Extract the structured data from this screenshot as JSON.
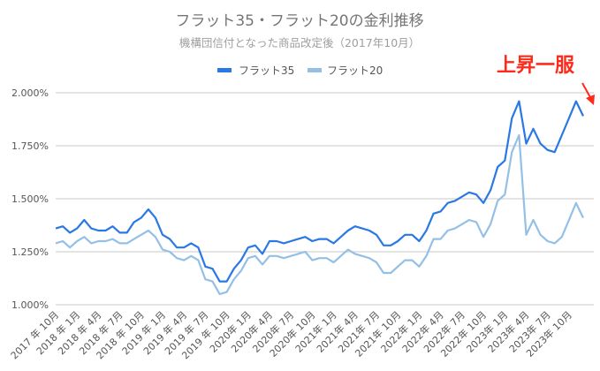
{
  "chart_data": {
    "type": "line",
    "title": "フラット35・フラット20の金利推移",
    "subtitle": "機構団信付となった商品改定後（2017年10月）",
    "annotation": "上昇一服",
    "annotation_color": "#ff2a1a",
    "ylim": [
      1.0,
      2.0
    ],
    "yticks": [
      "1.000%",
      "1.250%",
      "1.500%",
      "1.750%",
      "2.000%"
    ],
    "ytick_values": [
      1.0,
      1.25,
      1.5,
      1.75,
      2.0
    ],
    "grid": true,
    "legend_position": "top",
    "x_start": "2017-10",
    "xtick_labels": [
      "2017 年 10月",
      "2018 年 1月",
      "2018 年 4月",
      "2018 年 7月",
      "2018 年 10月",
      "2019 年 1月",
      "2019 年 4月",
      "2019 年 7月",
      "2019 年 10月",
      "2020年 1月",
      "2020年 4月",
      "2020年 7月",
      "2020年 10月",
      "2021年 1月",
      "2021年 4月",
      "2021年 7月",
      "2021年 10月",
      "2022年 1月",
      "2022年 4月",
      "2022年 7月",
      "2022年 10月",
      "2023年 1月",
      "2023年 4月",
      "2023年 7月",
      "2023年 10月"
    ],
    "series": [
      {
        "name": "フラット35",
        "color": "#2a78e4",
        "values": [
          1.36,
          1.37,
          1.34,
          1.36,
          1.4,
          1.36,
          1.35,
          1.35,
          1.37,
          1.34,
          1.34,
          1.39,
          1.41,
          1.45,
          1.41,
          1.33,
          1.31,
          1.27,
          1.27,
          1.29,
          1.27,
          1.18,
          1.17,
          1.11,
          1.11,
          1.17,
          1.21,
          1.27,
          1.28,
          1.24,
          1.3,
          1.3,
          1.29,
          1.3,
          1.31,
          1.32,
          1.3,
          1.31,
          1.31,
          1.29,
          1.32,
          1.35,
          1.37,
          1.36,
          1.35,
          1.33,
          1.28,
          1.28,
          1.3,
          1.33,
          1.33,
          1.3,
          1.35,
          1.43,
          1.44,
          1.48,
          1.49,
          1.51,
          1.53,
          1.52,
          1.48,
          1.54,
          1.65,
          1.68,
          1.88,
          1.96,
          1.76,
          1.83,
          1.76,
          1.73,
          1.72,
          1.8,
          1.88,
          1.96,
          1.89
        ]
      },
      {
        "name": "フラット20",
        "color": "#94c0e6",
        "values": [
          1.29,
          1.3,
          1.27,
          1.3,
          1.32,
          1.29,
          1.3,
          1.3,
          1.31,
          1.29,
          1.29,
          1.31,
          1.33,
          1.35,
          1.32,
          1.26,
          1.25,
          1.22,
          1.21,
          1.23,
          1.21,
          1.12,
          1.11,
          1.05,
          1.06,
          1.12,
          1.16,
          1.22,
          1.23,
          1.19,
          1.23,
          1.23,
          1.22,
          1.23,
          1.24,
          1.25,
          1.21,
          1.22,
          1.22,
          1.2,
          1.23,
          1.26,
          1.24,
          1.23,
          1.22,
          1.2,
          1.15,
          1.15,
          1.18,
          1.21,
          1.21,
          1.18,
          1.23,
          1.31,
          1.31,
          1.35,
          1.36,
          1.38,
          1.4,
          1.39,
          1.32,
          1.38,
          1.49,
          1.52,
          1.72,
          1.8,
          1.33,
          1.4,
          1.33,
          1.3,
          1.29,
          1.32,
          1.4,
          1.48,
          1.41
        ]
      }
    ]
  }
}
